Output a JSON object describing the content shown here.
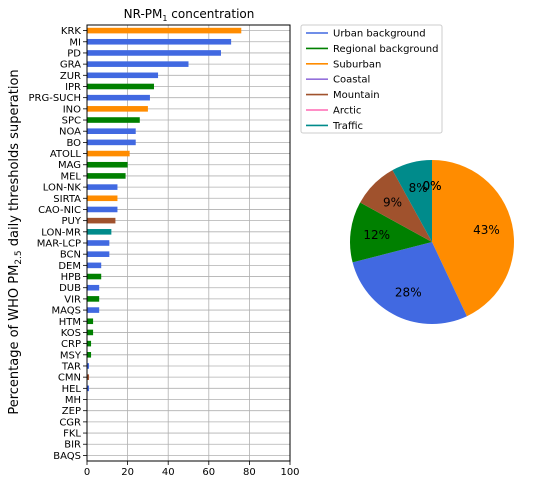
{
  "chart_data": [
    {
      "type": "bar",
      "orientation": "horizontal",
      "title": "NR-PM",
      "title_sub": "1",
      "title_tail": " concentration",
      "ylabel": "Percentage of WHO PM",
      "ylabel_sub": "2.5",
      "ylabel_tail": " daily thresholds superation",
      "xlim": [
        0,
        100
      ],
      "xticks": [
        "0",
        "20",
        "40",
        "60",
        "80",
        "100"
      ],
      "grid": true,
      "categories": [
        "KRK",
        "MI",
        "PD",
        "GRA",
        "ZUR",
        "IPR",
        "PRG-SUCH",
        "INO",
        "SPC",
        "NOA",
        "BO",
        "ATOLL",
        "MAG",
        "MEL",
        "LON-NK",
        "SIRTA",
        "CAO-NIC",
        "PUY",
        "LON-MR",
        "MAR-LCP",
        "BCN",
        "DEM",
        "HPB",
        "DUB",
        "VIR",
        "MAQS",
        "HTM",
        "KOS",
        "CRP",
        "MSY",
        "TAR",
        "CMN",
        "HEL",
        "MH",
        "ZEP",
        "CGR",
        "FKL",
        "BIR",
        "BAQS"
      ],
      "values": [
        76,
        71,
        66,
        50,
        35,
        33,
        31,
        30,
        26,
        24,
        24,
        21,
        20,
        19,
        15,
        15,
        15,
        14,
        12,
        11,
        11,
        7,
        7,
        6,
        6,
        6,
        3,
        3,
        2,
        2,
        1,
        1,
        1,
        0,
        0,
        0,
        0,
        0,
        0
      ],
      "site_types": [
        "Suburban",
        "Urban background",
        "Urban background",
        "Urban background",
        "Urban background",
        "Regional background",
        "Urban background",
        "Suburban",
        "Regional background",
        "Urban background",
        "Urban background",
        "Suburban",
        "Regional background",
        "Regional background",
        "Urban background",
        "Suburban",
        "Urban background",
        "Mountain",
        "Traffic",
        "Urban background",
        "Urban background",
        "Urban background",
        "Regional background",
        "Urban background",
        "Regional background",
        "Urban background",
        "Regional background",
        "Regional background",
        "Regional background",
        "Regional background",
        "Urban background",
        "Mountain",
        "Urban background",
        "Coastal",
        "Arctic",
        "Regional background",
        "Coastal",
        "Regional background",
        "Urban background"
      ]
    },
    {
      "type": "pie",
      "labels": [
        "Suburban",
        "Urban background",
        "Regional background",
        "Mountain",
        "Traffic",
        "Coastal",
        "Arctic"
      ],
      "values": [
        43,
        28,
        12,
        9,
        8,
        0,
        0
      ],
      "value_labels": [
        "43%",
        "28%",
        "12%",
        "9%",
        "8%",
        "0%",
        "0%"
      ]
    }
  ],
  "legend": {
    "placement": "top-right",
    "entries": [
      {
        "name": "Urban background",
        "color": "#4169e1"
      },
      {
        "name": "Regional background",
        "color": "#008000"
      },
      {
        "name": "Suburban",
        "color": "#ff8c00"
      },
      {
        "name": "Coastal",
        "color": "#9370db"
      },
      {
        "name": "Mountain",
        "color": "#a0522d"
      },
      {
        "name": "Arctic",
        "color": "#ff69b4"
      },
      {
        "name": "Traffic",
        "color": "#008b8b"
      }
    ]
  },
  "colors": {
    "Urban background": "#4169e1",
    "Regional background": "#008000",
    "Suburban": "#ff8c00",
    "Coastal": "#9370db",
    "Mountain": "#a0522d",
    "Arctic": "#ff69b4",
    "Traffic": "#008b8b"
  }
}
